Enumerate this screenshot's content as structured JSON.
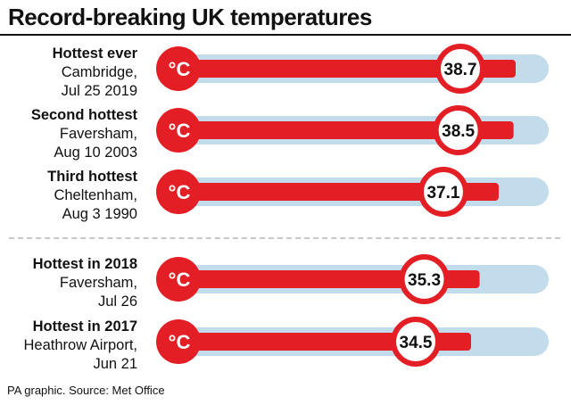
{
  "title": "Record-breaking UK temperatures",
  "source": "PA graphic. Source: Met Office",
  "unit_symbol": "°C",
  "colors": {
    "mercury": "#e31e24",
    "tube": "#c2dceb",
    "text": "#111111"
  },
  "records": [
    {
      "heading": "Hottest ever",
      "location": "Cambridge,",
      "date": "Jul 25 2019",
      "value_label": "38.7"
    },
    {
      "heading": "Second hottest",
      "location": "Faversham,",
      "date": "Aug 10 2003",
      "value_label": "38.5"
    },
    {
      "heading": "Third hottest",
      "location": "Cheltenham,",
      "date": "Aug 3 1990",
      "value_label": "37.1"
    },
    {
      "heading": "Hottest in 2018",
      "location": "Faversham,",
      "date": "Jul 26",
      "value_label": "35.3"
    },
    {
      "heading": "Hottest in 2017",
      "location": "Heathrow Airport,",
      "date": "Jun 21",
      "value_label": "34.5"
    }
  ],
  "chart_data": {
    "type": "bar",
    "title": "Record-breaking UK temperatures",
    "categories": [
      "Hottest ever",
      "Second hottest",
      "Third hottest",
      "Hottest in 2018",
      "Hottest in 2017"
    ],
    "values": [
      38.7,
      38.5,
      37.1,
      35.3,
      34.5
    ],
    "unit": "°C"
  }
}
